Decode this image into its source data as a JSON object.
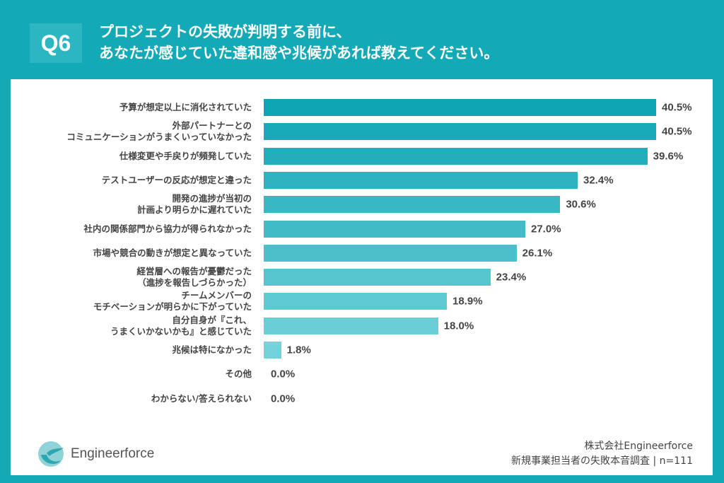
{
  "header": {
    "badge": "Q6",
    "title_line1": "プロジェクトの失敗が判明する前に、",
    "title_line2": "あなたが感じていた違和感や兆候があれば教えてください。"
  },
  "chart_data": {
    "type": "bar",
    "orientation": "horizontal",
    "categories": [
      "予算が想定以上に消化されていた",
      "外部パートナーとの\nコミュニケーションがうまくいっていなかった",
      "仕様変更や手戻りが頻発していた",
      "テストユーザーの反応が想定と違った",
      "開発の進捗が当初の\n計画より明らかに遅れていた",
      "社内の関係部門から協力が得られなかった",
      "市場や競合の動きが想定と異なっていた",
      "経営層への報告が憂鬱だった\n（進捗を報告しづらかった）",
      "チームメンバーの\nモチベーションが明らかに下がっていた",
      "自分自身が『これ、\nうまくいかないかも』と感じていた",
      "兆候は特になかった",
      "その他",
      "わからない/答えられない"
    ],
    "values": [
      40.5,
      40.5,
      39.6,
      32.4,
      30.6,
      27.0,
      26.1,
      23.4,
      18.9,
      18.0,
      1.8,
      0.0,
      0.0
    ],
    "value_labels": [
      "40.5%",
      "40.5%",
      "39.6%",
      "32.4%",
      "30.6%",
      "27.0%",
      "26.1%",
      "23.4%",
      "18.9%",
      "18.0%",
      "1.8%",
      "0.0%",
      "0.0%"
    ],
    "unit": "%",
    "colors": {
      "start": "#0ea6b4",
      "end": "#74d2da"
    }
  },
  "footer": {
    "logo_text": "Engineerforce",
    "company": "株式会社Engineerforce",
    "survey": "新規事業担当者の失敗本音調査 | n=111"
  },
  "colors": {
    "background": "#13a9b6",
    "panel": "#ffffff"
  }
}
